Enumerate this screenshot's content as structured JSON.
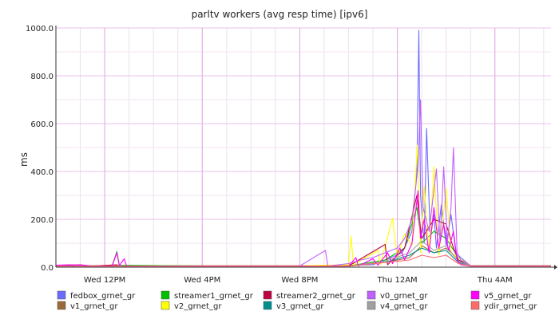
{
  "chart_data": {
    "type": "line",
    "title": "parltv workers (avg resp time) [ipv6]",
    "xlabel": "",
    "ylabel": "ms",
    "ylim": [
      0,
      1000
    ],
    "y_ticks": [
      "0.0",
      "200.0",
      "400.0",
      "600.0",
      "800.0",
      "1000.0"
    ],
    "y_tick_values": [
      0,
      200,
      400,
      600,
      800,
      1000
    ],
    "x_range_hours": [
      10,
      30.3
    ],
    "x_ticks": [
      {
        "label": "Wed 12PM",
        "hour": 12
      },
      {
        "label": "Wed  4PM",
        "hour": 16
      },
      {
        "label": "Wed  8PM",
        "hour": 20
      },
      {
        "label": "Thu 12AM",
        "hour": 24
      },
      {
        "label": "Thu  4AM",
        "hour": 28
      }
    ],
    "grid": true,
    "legend_position": "bottom",
    "series": [
      {
        "name": "fedbox_grnet_gr",
        "color": "#6b6bff",
        "points": [
          [
            10,
            6
          ],
          [
            13,
            5
          ],
          [
            16,
            5
          ],
          [
            19,
            5
          ],
          [
            22,
            5
          ],
          [
            22.3,
            8
          ],
          [
            23,
            10
          ],
          [
            23.5,
            30
          ],
          [
            24.2,
            60
          ],
          [
            24.6,
            150
          ],
          [
            24.8,
            400
          ],
          [
            24.88,
            990
          ],
          [
            24.95,
            300
          ],
          [
            25.1,
            100
          ],
          [
            25.2,
            580
          ],
          [
            25.35,
            120
          ],
          [
            25.5,
            220
          ],
          [
            25.6,
            80
          ],
          [
            25.8,
            260
          ],
          [
            26,
            90
          ],
          [
            26.2,
            220
          ],
          [
            26.4,
            60
          ],
          [
            26.6,
            40
          ],
          [
            27,
            6
          ],
          [
            30.3,
            6
          ]
        ]
      },
      {
        "name": "v1_grnet_gr",
        "color": "#9a6a3a",
        "points": [
          [
            10,
            6
          ],
          [
            16,
            6
          ],
          [
            22,
            6
          ],
          [
            23.5,
            20
          ],
          [
            24.5,
            40
          ],
          [
            25,
            90
          ],
          [
            25.5,
            60
          ],
          [
            26,
            80
          ],
          [
            26.5,
            30
          ],
          [
            27,
            6
          ],
          [
            30.3,
            6
          ]
        ]
      },
      {
        "name": "streamer1_grnet_gr",
        "color": "#00c000",
        "points": [
          [
            10,
            5
          ],
          [
            12.3,
            5
          ],
          [
            12.5,
            65
          ],
          [
            12.6,
            8
          ],
          [
            16,
            5
          ],
          [
            22,
            5
          ],
          [
            23.5,
            30
          ],
          [
            24.3,
            80
          ],
          [
            24.8,
            250
          ],
          [
            25,
            100
          ],
          [
            25.5,
            150
          ],
          [
            26,
            120
          ],
          [
            26.5,
            40
          ],
          [
            27,
            5
          ],
          [
            30.3,
            5
          ]
        ]
      },
      {
        "name": "v2_grnet_gr",
        "color": "#ffff00",
        "points": [
          [
            10,
            5
          ],
          [
            20,
            5
          ],
          [
            21,
            8
          ],
          [
            22,
            10
          ],
          [
            22.1,
            130
          ],
          [
            22.2,
            10
          ],
          [
            23.2,
            70
          ],
          [
            23.3,
            10
          ],
          [
            23.8,
            205
          ],
          [
            24,
            40
          ],
          [
            24.3,
            140
          ],
          [
            24.6,
            90
          ],
          [
            24.82,
            510
          ],
          [
            24.95,
            60
          ],
          [
            25.1,
            340
          ],
          [
            25.3,
            60
          ],
          [
            25.5,
            420
          ],
          [
            25.7,
            50
          ],
          [
            26,
            330
          ],
          [
            26.2,
            60
          ],
          [
            26.5,
            40
          ],
          [
            27,
            5
          ],
          [
            30.3,
            5
          ]
        ]
      },
      {
        "name": "streamer2_grnet_gr",
        "color": "#c00040",
        "points": [
          [
            10,
            5
          ],
          [
            10.5,
            8
          ],
          [
            11,
            10
          ],
          [
            11.5,
            5
          ],
          [
            12.5,
            10
          ],
          [
            12.6,
            4
          ],
          [
            16,
            5
          ],
          [
            22,
            5
          ],
          [
            23.5,
            95
          ],
          [
            23.6,
            10
          ],
          [
            24.3,
            80
          ],
          [
            24.8,
            300
          ],
          [
            25,
            120
          ],
          [
            25.5,
            200
          ],
          [
            26,
            180
          ],
          [
            26.3,
            80
          ],
          [
            26.5,
            30
          ],
          [
            27,
            5
          ],
          [
            30.3,
            5
          ]
        ]
      },
      {
        "name": "v3_grnet_gr",
        "color": "#008f8f",
        "points": [
          [
            10,
            4
          ],
          [
            16,
            4
          ],
          [
            22,
            4
          ],
          [
            23.5,
            20
          ],
          [
            24.5,
            50
          ],
          [
            25,
            80
          ],
          [
            25.5,
            60
          ],
          [
            26,
            70
          ],
          [
            26.5,
            20
          ],
          [
            27,
            4
          ],
          [
            30.3,
            4
          ]
        ]
      },
      {
        "name": "v0_grnet_gr",
        "color": "#c060ff",
        "points": [
          [
            10,
            5
          ],
          [
            20,
            5
          ],
          [
            21.05,
            70
          ],
          [
            21.15,
            5
          ],
          [
            22,
            15
          ],
          [
            22.5,
            30
          ],
          [
            23,
            40
          ],
          [
            23.5,
            60
          ],
          [
            24,
            80
          ],
          [
            24.3,
            120
          ],
          [
            24.6,
            200
          ],
          [
            24.85,
            420
          ],
          [
            24.95,
            700
          ],
          [
            25.05,
            250
          ],
          [
            25.3,
            150
          ],
          [
            25.6,
            410
          ],
          [
            25.75,
            100
          ],
          [
            25.9,
            420
          ],
          [
            26.05,
            100
          ],
          [
            26.2,
            250
          ],
          [
            26.3,
            500
          ],
          [
            26.45,
            60
          ],
          [
            26.6,
            30
          ],
          [
            27,
            5
          ],
          [
            30.3,
            5
          ]
        ]
      },
      {
        "name": "v4_grnet_gr",
        "color": "#a0a0a0",
        "points": [
          [
            10,
            4
          ],
          [
            16,
            4
          ],
          [
            22,
            4
          ],
          [
            23.5,
            25
          ],
          [
            24.5,
            60
          ],
          [
            25,
            110
          ],
          [
            25.5,
            70
          ],
          [
            26,
            90
          ],
          [
            26.5,
            25
          ],
          [
            27,
            4
          ],
          [
            30.3,
            4
          ]
        ]
      },
      {
        "name": "v5_grnet_gr",
        "color": "#ff00ff",
        "points": [
          [
            10,
            8
          ],
          [
            10.5,
            10
          ],
          [
            11,
            9
          ],
          [
            11.5,
            4
          ],
          [
            12.3,
            4
          ],
          [
            12.5,
            60
          ],
          [
            12.6,
            6
          ],
          [
            12.8,
            35
          ],
          [
            12.9,
            4
          ],
          [
            16,
            4
          ],
          [
            20,
            4
          ],
          [
            22,
            5
          ],
          [
            22.3,
            40
          ],
          [
            22.4,
            5
          ],
          [
            23,
            35
          ],
          [
            23.2,
            8
          ],
          [
            23.6,
            60
          ],
          [
            23.8,
            15
          ],
          [
            24.1,
            80
          ],
          [
            24.3,
            30
          ],
          [
            24.6,
            100
          ],
          [
            24.85,
            320
          ],
          [
            24.95,
            120
          ],
          [
            25.1,
            200
          ],
          [
            25.3,
            60
          ],
          [
            25.5,
            250
          ],
          [
            25.7,
            80
          ],
          [
            25.9,
            180
          ],
          [
            26.1,
            70
          ],
          [
            26.3,
            150
          ],
          [
            26.45,
            30
          ],
          [
            26.6,
            10
          ],
          [
            27,
            4
          ],
          [
            30.3,
            4
          ]
        ]
      },
      {
        "name": "ydir_grnet_gr",
        "color": "#ff6a6a",
        "points": [
          [
            10,
            4
          ],
          [
            16,
            4
          ],
          [
            22,
            4
          ],
          [
            24.5,
            30
          ],
          [
            25,
            50
          ],
          [
            25.5,
            40
          ],
          [
            26,
            50
          ],
          [
            26.5,
            15
          ],
          [
            27,
            4
          ],
          [
            30.3,
            4
          ]
        ]
      }
    ]
  }
}
